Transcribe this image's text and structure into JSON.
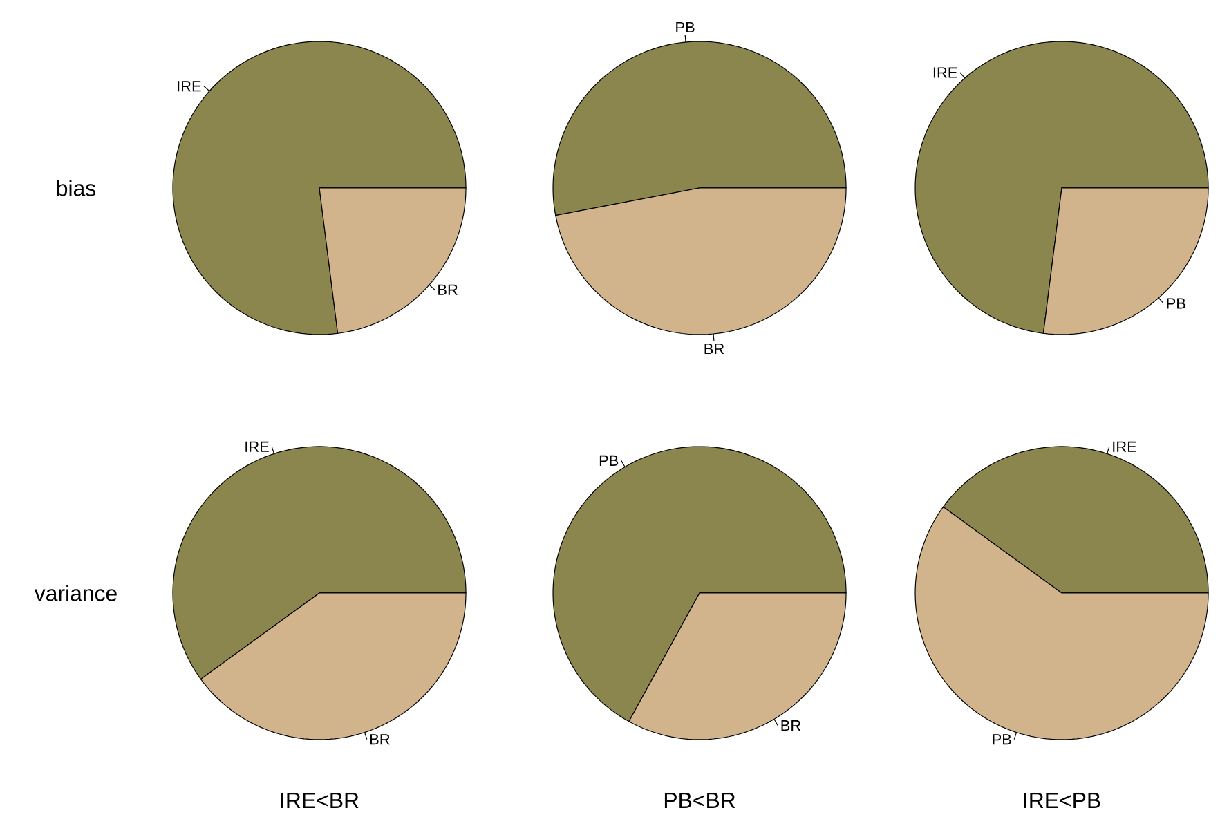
{
  "chart_data": [
    {
      "type": "pie",
      "ylabel": "bias",
      "categories": [
        "IRE",
        "BR"
      ],
      "values": [
        77,
        23
      ],
      "colors": [
        "#8b864e",
        "#d2b48c"
      ]
    },
    {
      "type": "pie",
      "categories": [
        "PB",
        "BR"
      ],
      "values": [
        53,
        47
      ],
      "colors": [
        "#8b864e",
        "#d2b48c"
      ]
    },
    {
      "type": "pie",
      "categories": [
        "IRE",
        "PB"
      ],
      "values": [
        73,
        27
      ],
      "colors": [
        "#8b864e",
        "#d2b48c"
      ]
    },
    {
      "type": "pie",
      "ylabel": "variance",
      "xlabel": "IRE<BR",
      "categories": [
        "IRE",
        "BR"
      ],
      "values": [
        60,
        40
      ],
      "colors": [
        "#8b864e",
        "#d2b48c"
      ]
    },
    {
      "type": "pie",
      "xlabel": "PB<BR",
      "categories": [
        "PB",
        "BR"
      ],
      "values": [
        67,
        33
      ],
      "colors": [
        "#8b864e",
        "#d2b48c"
      ]
    },
    {
      "type": "pie",
      "xlabel": "IRE<PB",
      "categories": [
        "IRE",
        "PB"
      ],
      "values": [
        40,
        60
      ],
      "colors": [
        "#8b864e",
        "#d2b48c"
      ]
    }
  ]
}
